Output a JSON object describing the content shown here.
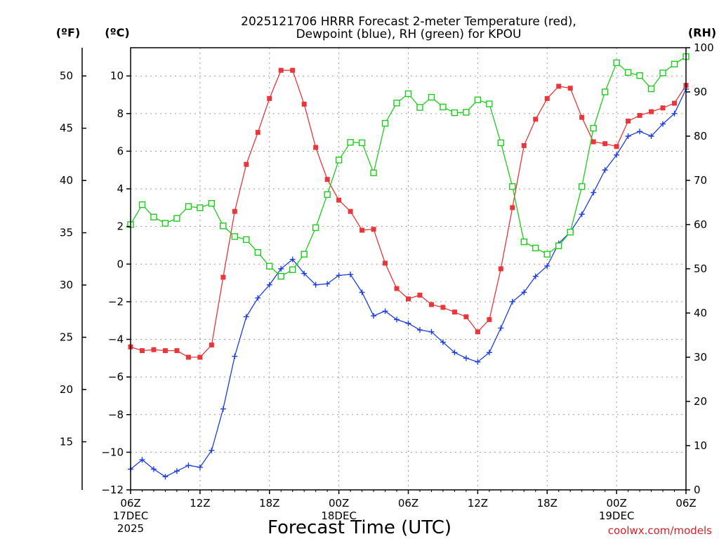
{
  "chart_data": {
    "type": "line",
    "title_line1": "2025121706 HRRR Forecast 2-meter Temperature (red),",
    "title_line2": "Dewpoint (blue), RH (green) for KPOU",
    "xlabel": "Forecast Time (UTC)",
    "credit": "coolwx.com/models",
    "unit_f": "(ºF)",
    "unit_c": "(ºC)",
    "unit_rh": "(RH)",
    "x_ticks": [
      {
        "hour": 0,
        "label": "06Z",
        "date": "17DEC",
        "year": "2025"
      },
      {
        "hour": 6,
        "label": "12Z"
      },
      {
        "hour": 12,
        "label": "18Z"
      },
      {
        "hour": 18,
        "label": "00Z",
        "date": "18DEC"
      },
      {
        "hour": 24,
        "label": "06Z"
      },
      {
        "hour": 30,
        "label": "12Z"
      },
      {
        "hour": 36,
        "label": "18Z"
      },
      {
        "hour": 42,
        "label": "00Z",
        "date": "19DEC"
      },
      {
        "hour": 48,
        "label": "06Z"
      }
    ],
    "xlim": [
      0,
      48
    ],
    "ylim_c": [
      -12,
      11.5
    ],
    "ylim_rh": [
      0,
      100
    ],
    "yticks_c": [
      -12,
      -10,
      -8,
      -6,
      -4,
      -2,
      0,
      2,
      4,
      6,
      8,
      10
    ],
    "ytick_labels_c": [
      "−12",
      "−10",
      "−8",
      "−6",
      "−4",
      "−2",
      "0",
      "2",
      "4",
      "6",
      "8",
      "10"
    ],
    "yticks_f": [
      15,
      20,
      25,
      30,
      35,
      40,
      45,
      50
    ],
    "yticks_rh": [
      0,
      10,
      20,
      30,
      40,
      50,
      60,
      70,
      80,
      90,
      100
    ],
    "series": [
      {
        "name": "Temperature",
        "unit": "C",
        "color": "#e8363a",
        "marker": "filled-square",
        "values": [
          -4.4,
          -4.6,
          -4.55,
          -4.6,
          -4.6,
          -4.95,
          -4.95,
          -4.3,
          -0.7,
          2.8,
          5.3,
          7.0,
          8.8,
          10.3,
          10.3,
          8.5,
          6.2,
          4.5,
          3.4,
          2.8,
          1.8,
          1.85,
          0.05,
          -1.3,
          -1.85,
          -1.65,
          -2.15,
          -2.3,
          -2.55,
          -2.8,
          -3.6,
          -2.95,
          -0.25,
          3.0,
          6.3,
          7.7,
          8.8,
          9.45,
          9.35,
          7.8,
          6.5,
          6.4,
          6.25,
          7.6,
          7.9,
          8.1,
          8.3,
          8.55,
          9.5
        ]
      },
      {
        "name": "Dewpoint",
        "unit": "C",
        "color": "#1c3fe0",
        "marker": "plus",
        "values": [
          -10.9,
          -10.4,
          -10.9,
          -11.3,
          -11.0,
          -10.7,
          -10.8,
          -9.9,
          -7.7,
          -4.9,
          -2.8,
          -1.8,
          -1.1,
          -0.25,
          0.25,
          -0.5,
          -1.1,
          -1.05,
          -0.6,
          -0.55,
          -1.5,
          -2.75,
          -2.5,
          -2.95,
          -3.15,
          -3.5,
          -3.6,
          -4.15,
          -4.7,
          -5.0,
          -5.2,
          -4.7,
          -3.4,
          -2.0,
          -1.5,
          -0.65,
          -0.1,
          1.1,
          1.7,
          2.65,
          3.8,
          5.0,
          5.8,
          6.8,
          7.05,
          6.8,
          7.45,
          8.0,
          9.3
        ]
      },
      {
        "name": "RH",
        "unit": "%",
        "color": "#1ccc1c",
        "marker": "open-square",
        "values": [
          60,
          64.5,
          61.7,
          60.3,
          61.4,
          64.1,
          63.8,
          64.8,
          59.7,
          57.3,
          56.6,
          53.7,
          50.6,
          48.3,
          49.8,
          53.3,
          59.3,
          66.8,
          74.6,
          78.6,
          78.5,
          71.7,
          82.9,
          87.5,
          89.6,
          86.5,
          88.8,
          86.6,
          85.3,
          85.4,
          88.2,
          87.3,
          78.5,
          68.6,
          56.1,
          54.7,
          53.3,
          55.2,
          58.3,
          68.6,
          81.8,
          90.0,
          96.6,
          94.4,
          93.7,
          90.7,
          94.3,
          96.3,
          98.0
        ]
      }
    ]
  }
}
